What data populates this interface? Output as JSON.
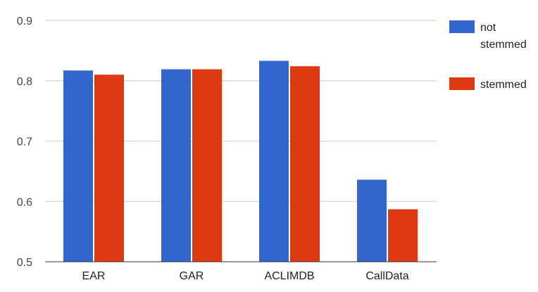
{
  "chart_data": {
    "type": "bar",
    "title": "",
    "xlabel": "",
    "ylabel": "",
    "categories": [
      "EAR",
      "GAR",
      "ACLIMDB",
      "CallData"
    ],
    "series": [
      {
        "name": "not stemmed",
        "legend_lines": [
          "not",
          "stemmed"
        ],
        "color": "#3366cc",
        "values": [
          0.817,
          0.819,
          0.833,
          0.636
        ]
      },
      {
        "name": "stemmed",
        "legend_lines": [
          "stemmed"
        ],
        "color": "#dc3912",
        "values": [
          0.81,
          0.819,
          0.824,
          0.587
        ]
      }
    ],
    "ylim": [
      0.5,
      0.9
    ],
    "yticks": [
      "0.5",
      "0.6",
      "0.7",
      "0.8",
      "0.9"
    ],
    "grid": true,
    "legend_position": "top-right"
  }
}
